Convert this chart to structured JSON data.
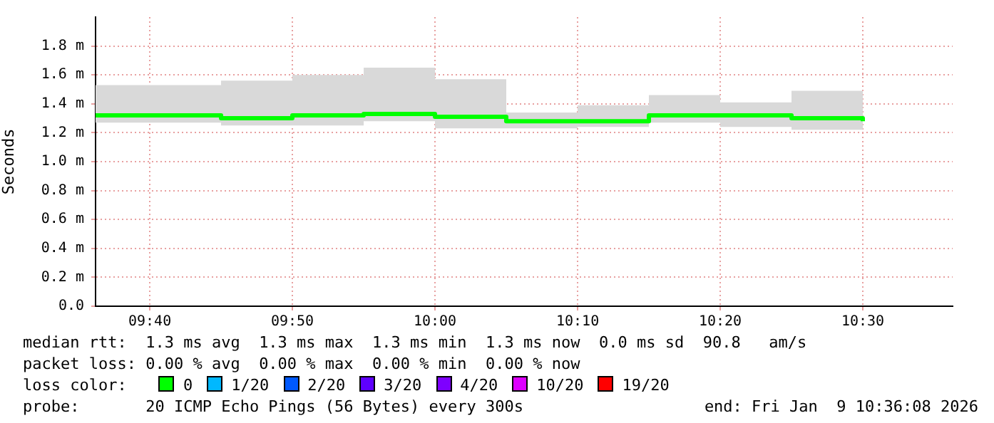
{
  "chart_data": {
    "type": "step",
    "ylabel": "Seconds",
    "x": [
      9.6667,
      9.75,
      9.8333,
      9.9167,
      10,
      10.0833,
      10.1667,
      10.25,
      10.3333,
      10.4167,
      10.5
    ],
    "series": [
      {
        "name": "0",
        "color": "#00ff00",
        "values": [
          1.32,
          1.3,
          1.32,
          1.33,
          1.31,
          1.28,
          1.28,
          1.32,
          1.32,
          1.3,
          1.28
        ],
        "lower": [
          1.27,
          1.25,
          1.25,
          1.28,
          1.23,
          1.23,
          1.24,
          1.27,
          1.24,
          1.22,
          1.21
        ],
        "upper": [
          1.53,
          1.56,
          1.6,
          1.65,
          1.57,
          1.34,
          1.39,
          1.46,
          1.41,
          1.49,
          1.55
        ]
      },
      {
        "name": "1/20",
        "color": "#00b8ff",
        "values": [
          null,
          null,
          null,
          null,
          null,
          null,
          null,
          null,
          null,
          null,
          null
        ]
      },
      {
        "name": "2/20",
        "color": "#0059ff",
        "values": [
          null,
          null,
          null,
          null,
          null,
          null,
          null,
          null,
          null,
          null,
          null
        ]
      },
      {
        "name": "3/20",
        "color": "#5e00ff",
        "values": [
          null,
          null,
          null,
          null,
          null,
          null,
          null,
          null,
          null,
          null,
          null
        ]
      },
      {
        "name": "4/20",
        "color": "#7e00ff",
        "values": [
          null,
          null,
          null,
          null,
          null,
          null,
          null,
          null,
          null,
          null,
          null
        ]
      },
      {
        "name": "10/20",
        "color": "#dd00ff",
        "values": [
          null,
          null,
          null,
          null,
          null,
          null,
          null,
          null,
          null,
          null,
          null
        ]
      },
      {
        "name": "19/20",
        "color": "#ff0000",
        "values": [
          null,
          null,
          null,
          null,
          null,
          null,
          null,
          null,
          null,
          null,
          null
        ]
      }
    ],
    "legend": "bottom",
    "legend_title": "loss color:",
    "xlim": [
      9.6033,
      10.605
    ],
    "xticks": [
      {
        "value": 9.6667,
        "label": "09:40"
      },
      {
        "value": 9.8333,
        "label": "09:50"
      },
      {
        "value": 10,
        "label": "10:00"
      },
      {
        "value": 10.1667,
        "label": "10:10"
      },
      {
        "value": 10.3333,
        "label": "10:20"
      },
      {
        "value": 10.5,
        "label": "10:30"
      }
    ],
    "ylim": [
      0,
      2.0
    ],
    "yticks": [
      {
        "value": 0,
        "label": "0.0"
      },
      {
        "value": 0.2,
        "label": "0.2 m"
      },
      {
        "value": 0.4,
        "label": "0.4 m"
      },
      {
        "value": 0.6,
        "label": "0.6 m"
      },
      {
        "value": 0.8,
        "label": "0.8 m"
      },
      {
        "value": 1.0,
        "label": "1.0 m"
      },
      {
        "value": 1.2,
        "label": "1.2 m"
      },
      {
        "value": 1.4,
        "label": "1.4 m"
      },
      {
        "value": 1.6,
        "label": "1.6 m"
      },
      {
        "value": 1.8,
        "label": "1.8 m"
      }
    ],
    "grid": true,
    "marker": "none",
    "line_style": "solid",
    "annotations": [
      "median rtt:  1.3 ms avg  1.3 ms max  1.3 ms min  1.3 ms now  0.0 ms sd  90.8   am/s",
      "packet loss: 0.00 % avg  0.00 % max  0.00 % min  0.00 % now",
      "probe:       20 ICMP Echo Pings (56 Bytes) every 300s",
      "end: Fri Jan  9 10:36:08 2026"
    ]
  }
}
